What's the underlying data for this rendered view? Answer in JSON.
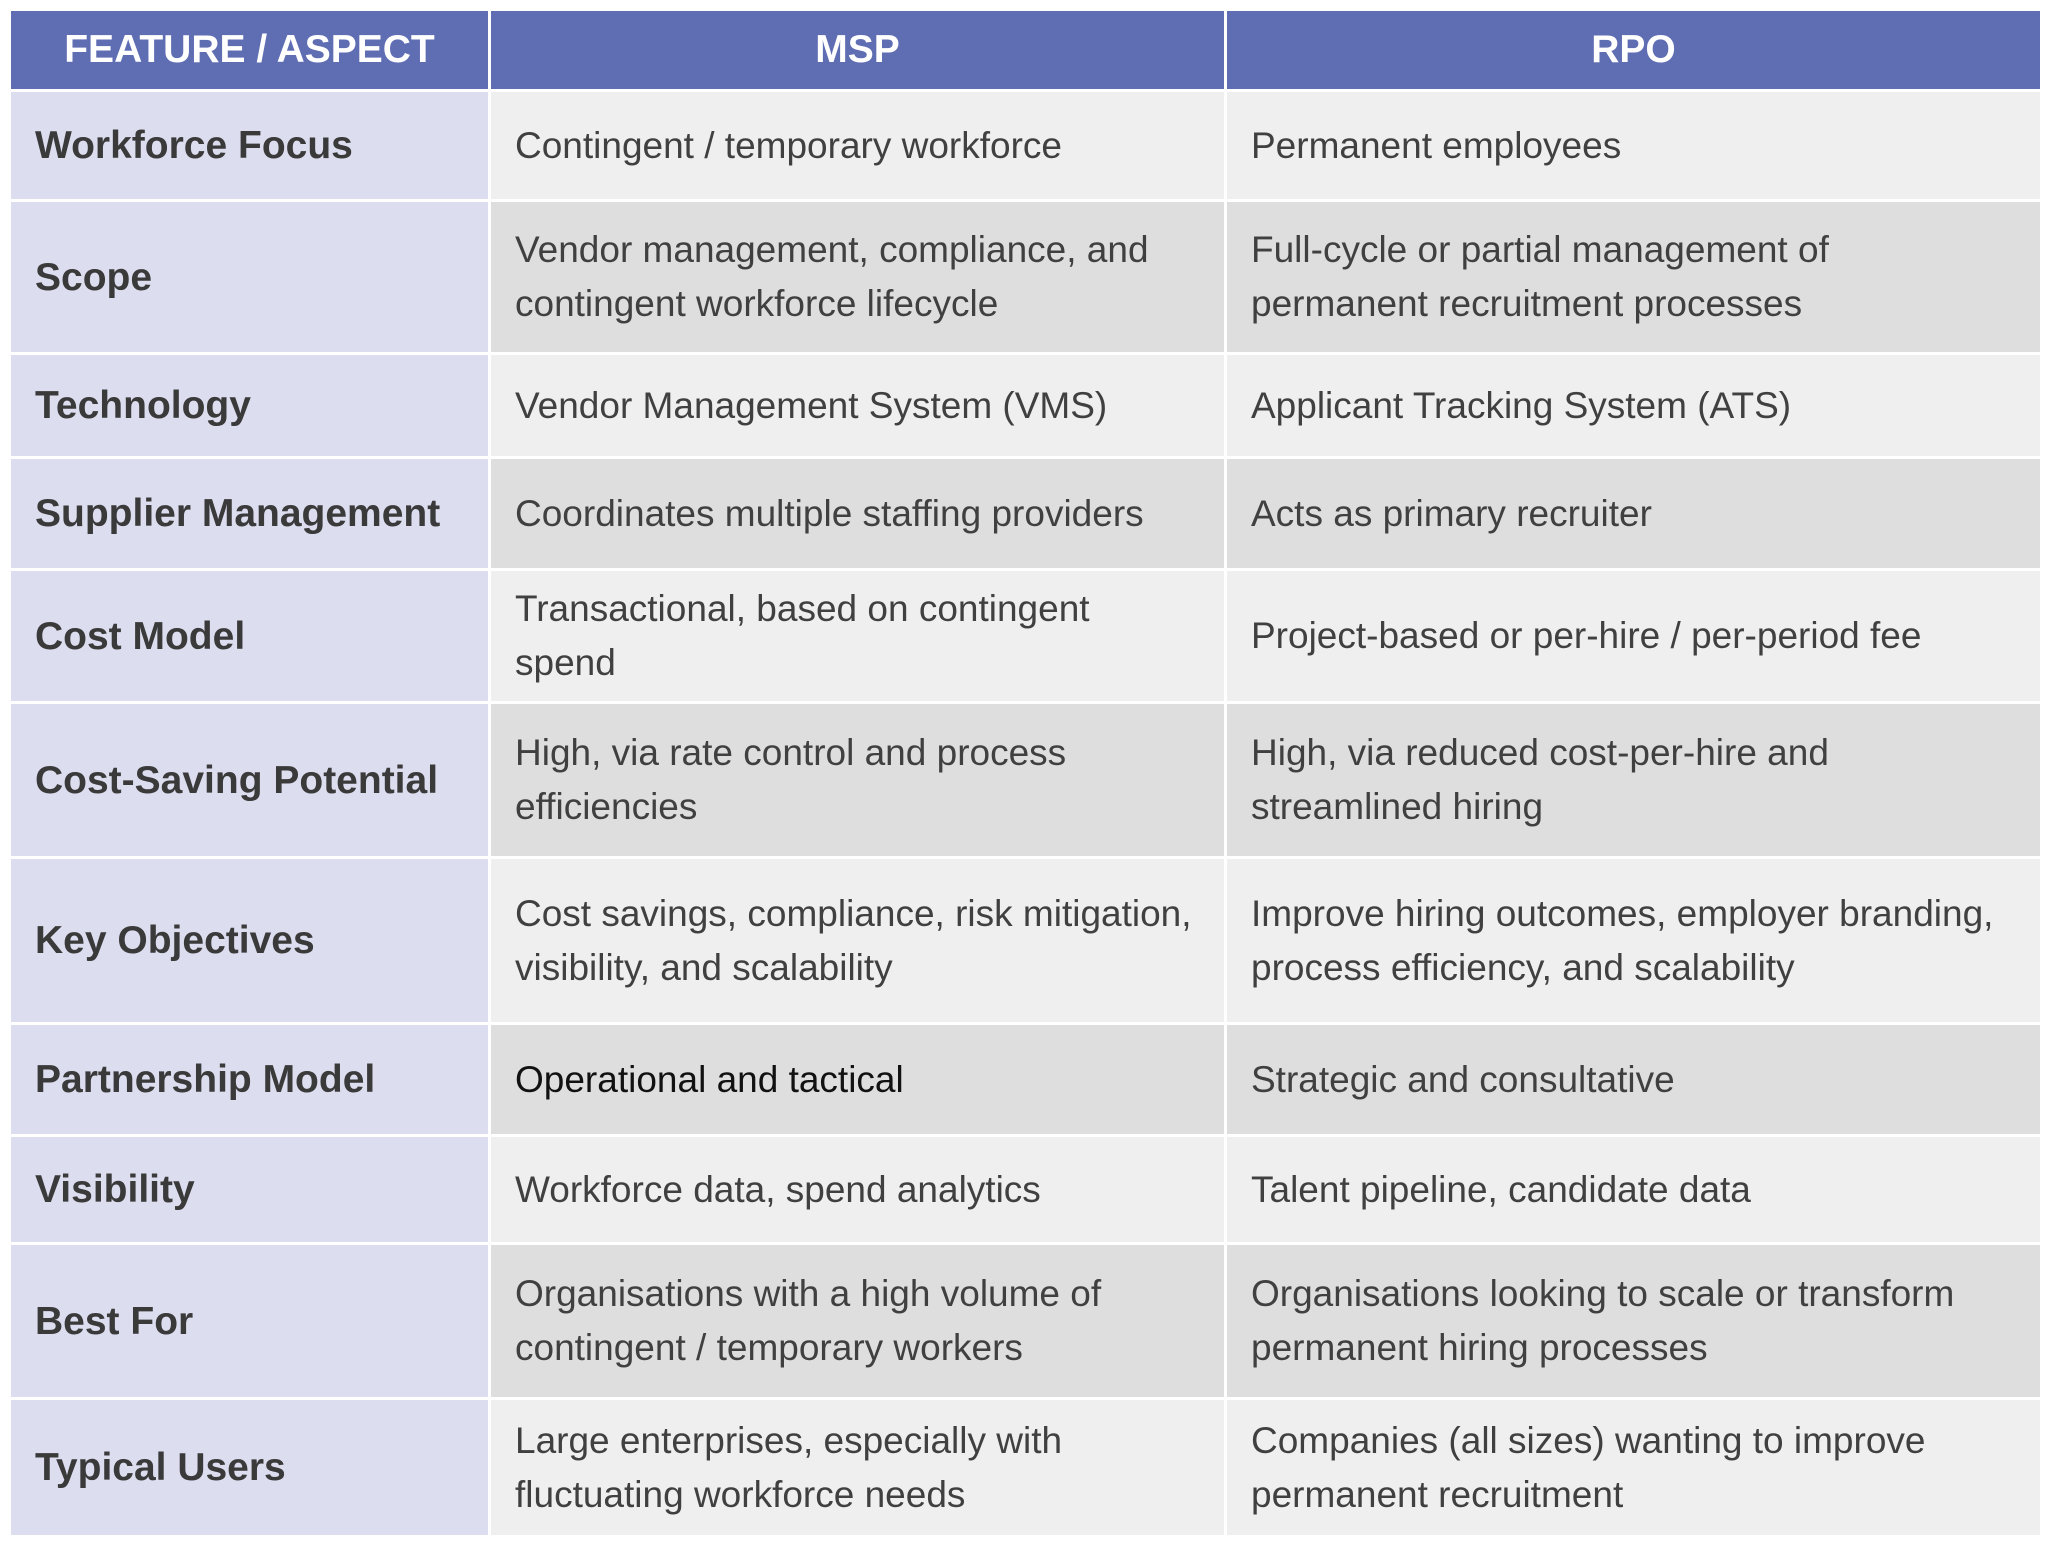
{
  "table": {
    "headers": [
      "FEATURE / ASPECT",
      "MSP",
      "RPO"
    ],
    "rows": [
      {
        "feature": "Workforce Focus",
        "msp": "Contingent / temporary workforce",
        "rpo": "Permanent employees"
      },
      {
        "feature": "Scope",
        "msp": "Vendor management, compliance, and contingent workforce lifecycle",
        "rpo": "Full-cycle or partial management of permanent recruitment processes"
      },
      {
        "feature": "Technology",
        "msp": "Vendor Management System (VMS)",
        "rpo": "Applicant Tracking System (ATS)"
      },
      {
        "feature": "Supplier Management",
        "msp": "Coordinates multiple staffing providers",
        "rpo": "Acts as primary recruiter"
      },
      {
        "feature": "Cost Model",
        "msp": "Transactional, based on contingent spend",
        "rpo": "Project-based or per-hire / per-period fee"
      },
      {
        "feature": "Cost-Saving Potential",
        "msp": "High, via rate control and process efficiencies",
        "rpo": "High, via reduced cost-per-hire and streamlined hiring"
      },
      {
        "feature": "Key Objectives",
        "msp": "Cost savings, compliance, risk mitigation, visibility, and scalability",
        "rpo": "Improve hiring outcomes, employer branding, process efficiency, and scalability"
      },
      {
        "feature": "Partnership Model",
        "msp": "Operational and tactical",
        "rpo": "Strategic and consultative"
      },
      {
        "feature": "Visibility",
        "msp": "Workforce data, spend analytics",
        "rpo": "Talent pipeline, candidate data"
      },
      {
        "feature": "Best For",
        "msp": "Organisations with a high volume of contingent / temporary workers",
        "rpo": "Organisations looking to scale or transform permanent hiring processes"
      },
      {
        "feature": "Typical Users",
        "msp": "Large enterprises, especially with fluctuating workforce needs",
        "rpo": "Companies (all sizes) wanting to improve permanent recruitment"
      }
    ]
  },
  "colors": {
    "header_bg": "#5f6db3",
    "feature_bg": "#dcddef",
    "row_light": "#efefef",
    "row_dark": "#dedede"
  }
}
